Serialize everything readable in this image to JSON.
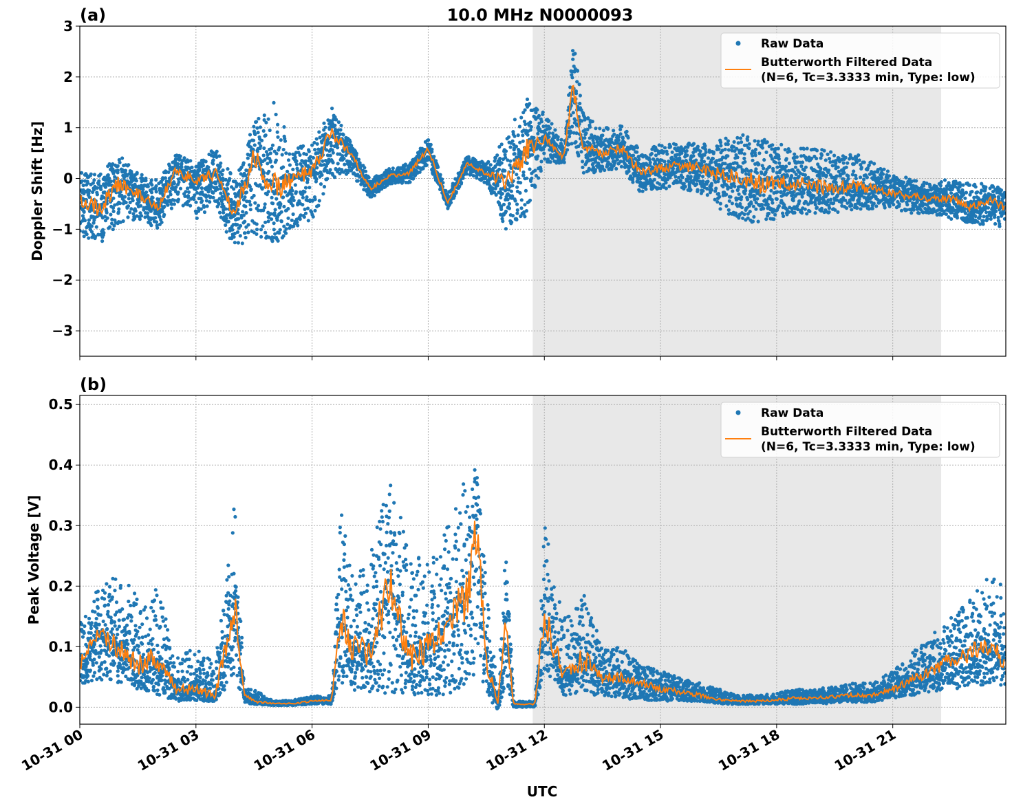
{
  "title": "10.0 MHz N0000093",
  "x_axis": {
    "label": "UTC",
    "ticks": [
      0,
      3,
      6,
      9,
      12,
      15,
      18,
      21
    ],
    "tick_labels": [
      "10-31 00",
      "10-31 03",
      "10-31 06",
      "10-31 09",
      "10-31 12",
      "10-31 15",
      "10-31 18",
      "10-31 21"
    ],
    "range_hours": [
      0,
      23.92
    ]
  },
  "shaded_region_hours": [
    11.7,
    22.25
  ],
  "colors": {
    "raw": "#1f77b4",
    "filtered": "#ff7f0e",
    "shade": "#e8e8e8"
  },
  "legend": {
    "raw_label": "Raw Data",
    "filtered_label_line1": "Butterworth Filtered Data",
    "filtered_label_line2": "(N=6, Tc=3.3333 min, Type: low)",
    "placement": "top-right"
  },
  "chart_data": [
    {
      "type": "scatter+line",
      "panel_label": "(a)",
      "ylabel": "Doppler Shift [Hz]",
      "ylim": [
        -3.5,
        3
      ],
      "yticks": [
        3,
        2,
        1,
        0,
        -1,
        -2,
        -3
      ],
      "ytick_labels": [
        "3",
        "2",
        "1",
        "0",
        "−1",
        "−2",
        "−3"
      ],
      "grid": true,
      "x": [
        0,
        0.5,
        1,
        1.5,
        2,
        2.5,
        3,
        3.5,
        4,
        4.5,
        5,
        5.5,
        6,
        6.5,
        7,
        7.5,
        8,
        8.5,
        9,
        9.5,
        10,
        10.5,
        11,
        11.5,
        12,
        12.5,
        12.75,
        13,
        13.5,
        14,
        14.5,
        15,
        15.5,
        16,
        16.5,
        17,
        17.5,
        18,
        18.5,
        19,
        19.5,
        20,
        20.5,
        21,
        21.5,
        22,
        22.5,
        23,
        23.5,
        23.9
      ],
      "series": [
        {
          "name": "Butterworth Filtered Data",
          "values": [
            -0.4,
            -0.6,
            -0.1,
            -0.3,
            -0.6,
            0.2,
            -0.1,
            0.1,
            -0.7,
            0.4,
            -0.2,
            0.0,
            0.1,
            0.9,
            0.5,
            -0.2,
            0.05,
            0.1,
            0.6,
            -0.5,
            0.3,
            0.1,
            -0.1,
            0.5,
            0.8,
            0.4,
            1.8,
            0.6,
            0.5,
            0.6,
            0.1,
            0.2,
            0.25,
            0.2,
            0.1,
            0.0,
            -0.1,
            -0.1,
            -0.1,
            -0.15,
            -0.2,
            -0.15,
            -0.2,
            -0.3,
            -0.35,
            -0.4,
            -0.4,
            -0.6,
            -0.4,
            -0.6
          ]
        },
        {
          "name": "Raw Data",
          "min": [
            -1.1,
            -1.3,
            -0.9,
            -0.8,
            -1.0,
            -0.5,
            -0.8,
            -0.5,
            -1.5,
            -1.1,
            -1.3,
            -1.0,
            -0.8,
            0.0,
            0.1,
            -0.4,
            -0.1,
            -0.1,
            0.3,
            -0.6,
            0.1,
            -0.1,
            -1.0,
            -0.8,
            0.3,
            0.3,
            0.6,
            0.1,
            0.1,
            0.2,
            -0.3,
            -0.2,
            -0.2,
            -0.3,
            -0.6,
            -0.8,
            -0.9,
            -0.8,
            -0.7,
            -0.7,
            -0.7,
            -0.6,
            -0.6,
            -0.6,
            -0.7,
            -0.7,
            -0.8,
            -0.9,
            -0.9,
            -1.0
          ],
          "max": [
            0.2,
            0.1,
            0.5,
            0.1,
            0.0,
            0.5,
            0.3,
            0.6,
            0.0,
            1.1,
            1.5,
            0.6,
            0.7,
            1.4,
            0.7,
            0.0,
            0.2,
            0.3,
            0.8,
            -0.3,
            0.45,
            0.3,
            0.8,
            1.6,
            1.3,
            0.7,
            2.7,
            1.3,
            1.0,
            1.1,
            0.5,
            0.7,
            0.7,
            0.7,
            0.8,
            0.9,
            0.8,
            0.7,
            0.6,
            0.6,
            0.5,
            0.5,
            0.3,
            0.1,
            0.0,
            -0.1,
            0.0,
            -0.1,
            -0.1,
            -0.2
          ]
        }
      ]
    },
    {
      "type": "scatter+line",
      "panel_label": "(b)",
      "ylabel": "Peak Voltage [V]",
      "ylim": [
        -0.028,
        0.515
      ],
      "yticks": [
        0.0,
        0.1,
        0.2,
        0.3,
        0.4,
        0.5
      ],
      "ytick_labels": [
        "0.0",
        "0.1",
        "0.2",
        "0.3",
        "0.4",
        "0.5"
      ],
      "grid": true,
      "x": [
        0,
        0.5,
        1,
        1.5,
        2,
        2.5,
        3,
        3.5,
        4,
        4.25,
        4.5,
        5,
        5.5,
        6,
        6.5,
        6.75,
        7,
        7.5,
        8,
        8.5,
        9,
        9.5,
        10,
        10.25,
        10.5,
        10.8,
        11,
        11.2,
        11.75,
        12,
        12.5,
        13,
        13.5,
        14,
        14.5,
        15,
        15.5,
        16,
        16.5,
        17,
        17.5,
        18,
        18.5,
        19,
        19.5,
        20,
        20.5,
        21,
        21.5,
        22,
        22.5,
        23,
        23.5,
        23.9
      ],
      "series": [
        {
          "name": "Butterworth Filtered Data",
          "values": [
            0.07,
            0.12,
            0.1,
            0.07,
            0.08,
            0.03,
            0.03,
            0.02,
            0.17,
            0.02,
            0.01,
            0.006,
            0.006,
            0.01,
            0.012,
            0.15,
            0.1,
            0.09,
            0.2,
            0.08,
            0.1,
            0.14,
            0.18,
            0.3,
            0.08,
            0.005,
            0.15,
            0.005,
            0.005,
            0.15,
            0.05,
            0.08,
            0.05,
            0.05,
            0.04,
            0.03,
            0.025,
            0.02,
            0.012,
            0.01,
            0.01,
            0.012,
            0.015,
            0.015,
            0.018,
            0.02,
            0.02,
            0.03,
            0.045,
            0.06,
            0.08,
            0.09,
            0.1,
            0.08
          ]
        },
        {
          "name": "Raw Data",
          "min": [
            0.04,
            0.04,
            0.04,
            0.03,
            0.02,
            0.01,
            0.01,
            0.01,
            0.05,
            0.005,
            0.005,
            0.003,
            0.003,
            0.005,
            0.005,
            0.04,
            0.03,
            0.02,
            0.02,
            0.02,
            0.02,
            0.02,
            0.03,
            0.05,
            0.02,
            -0.005,
            0.03,
            0.0,
            0.0,
            0.06,
            0.02,
            0.02,
            0.02,
            0.015,
            0.01,
            0.01,
            0.01,
            0.01,
            0.005,
            0.005,
            0.005,
            0.005,
            0.005,
            0.006,
            0.006,
            0.008,
            0.008,
            0.015,
            0.02,
            0.025,
            0.03,
            0.03,
            0.04,
            0.03
          ],
          "max": [
            0.14,
            0.2,
            0.22,
            0.19,
            0.2,
            0.08,
            0.1,
            0.07,
            0.35,
            0.03,
            0.03,
            0.01,
            0.012,
            0.018,
            0.02,
            0.35,
            0.22,
            0.25,
            0.4,
            0.25,
            0.25,
            0.3,
            0.4,
            0.42,
            0.2,
            0.02,
            0.28,
            0.01,
            0.01,
            0.3,
            0.15,
            0.2,
            0.1,
            0.1,
            0.07,
            0.06,
            0.05,
            0.04,
            0.03,
            0.02,
            0.02,
            0.025,
            0.03,
            0.03,
            0.035,
            0.04,
            0.04,
            0.06,
            0.09,
            0.12,
            0.15,
            0.18,
            0.22,
            0.2
          ]
        }
      ]
    }
  ]
}
